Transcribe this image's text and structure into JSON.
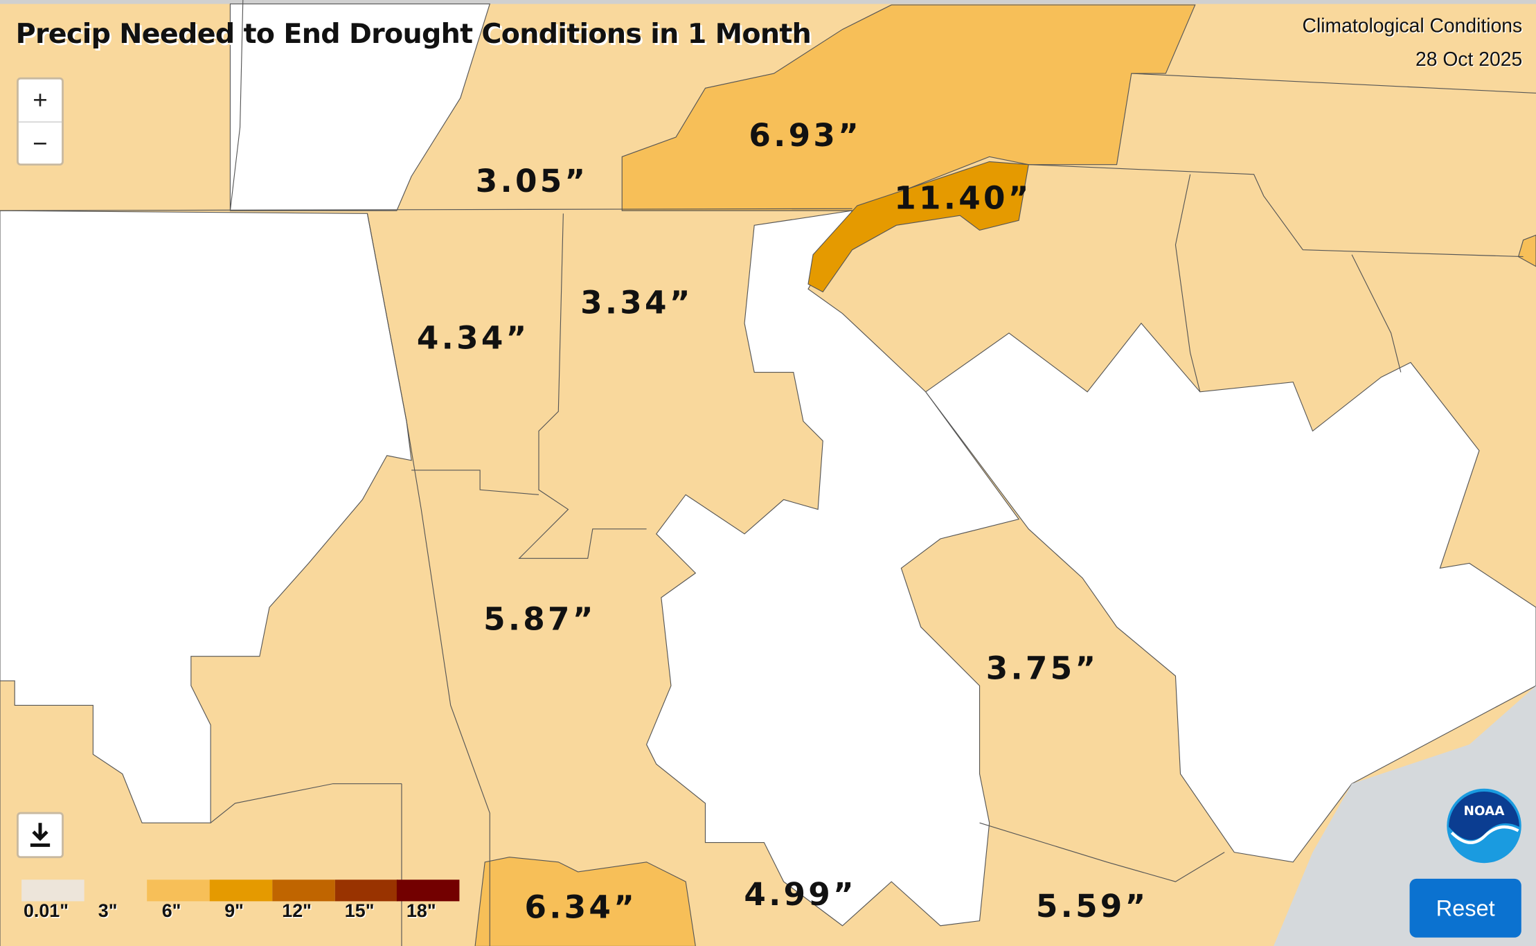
{
  "title": "Precip Needed to End Drought Conditions in 1 Month",
  "subtitle": "Climatological Conditions",
  "date": "28 Oct 2025",
  "controls": {
    "zoom_in": "+",
    "zoom_out": "−",
    "download_icon": "download-icon",
    "reset": "Reset"
  },
  "colors": {
    "none": "#ffffff",
    "c0": "#f9d89c",
    "c1": "#f7bf58",
    "c2": "#e59a00",
    "c3": "#c06500",
    "c4": "#993300",
    "c5": "#730000",
    "water": "#d5d9dc",
    "reset": "#0b72d0"
  },
  "legend": {
    "labels": [
      "0.01\"",
      "3\"",
      "6\"",
      "9\"",
      "12\"",
      "15\"",
      "18\""
    ],
    "swatches": [
      "#ede5da",
      "#f9d89c",
      "#f7bf58",
      "#e59a00",
      "#c06500",
      "#993300",
      "#730000"
    ]
  },
  "regions": [
    {
      "label": "6.93”"
    },
    {
      "label": "3.05”"
    },
    {
      "label": "11.40”"
    },
    {
      "label": "3.34”"
    },
    {
      "label": "4.34”"
    },
    {
      "label": "5.87”"
    },
    {
      "label": "3.75”"
    },
    {
      "label": "6.34”"
    },
    {
      "label": "4.99”"
    },
    {
      "label": "5.59”"
    }
  ],
  "logo": "NOAA"
}
